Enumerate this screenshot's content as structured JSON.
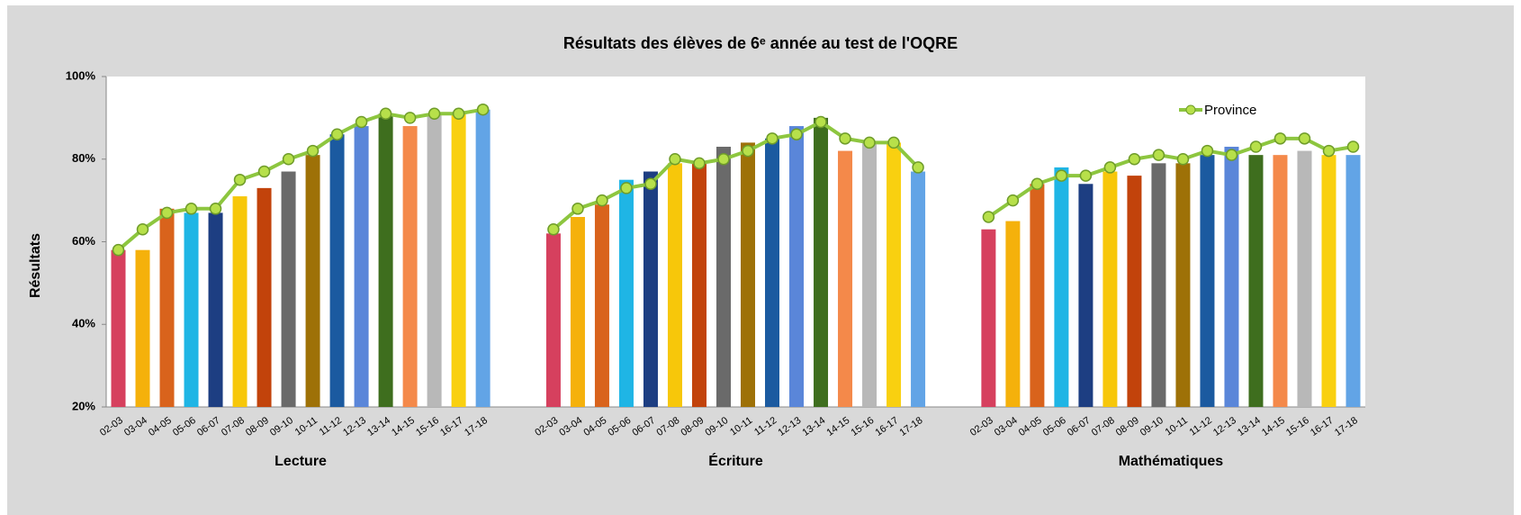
{
  "chart_data": {
    "type": "grouped-bar-line",
    "title": "Résultats des élèves de 6ᵉ année au test de l'OQRE",
    "y_label": "Résultats",
    "categories": [
      "02-03",
      "03-04",
      "04-05",
      "05-06",
      "06-07",
      "07-08",
      "08-09",
      "09-10",
      "10-11",
      "11-12",
      "12-13",
      "13-14",
      "14-15",
      "15-16",
      "16-17",
      "17-18"
    ],
    "bar_colors": [
      "#d6405e",
      "#f5b10b",
      "#d9631c",
      "#1fb5e5",
      "#1d3e82",
      "#f7c70a",
      "#c2430b",
      "#6a6a6a",
      "#9e7107",
      "#1b5aa0",
      "#5a86d9",
      "#3e6e1e",
      "#f4894a",
      "#b8b8b8",
      "#f9d010",
      "#62a4e6"
    ],
    "line": {
      "name": "Province",
      "color": "#8dc63f"
    },
    "groups": [
      {
        "name": "Lecture",
        "values": [
          58,
          58,
          68,
          67,
          67,
          71,
          73,
          77,
          81,
          86,
          88,
          91,
          88,
          91,
          91,
          92
        ],
        "province": [
          58,
          63,
          67,
          68,
          68,
          75,
          77,
          80,
          82,
          86,
          89,
          91,
          90,
          91,
          91,
          92
        ]
      },
      {
        "name": "Écriture",
        "values": [
          62,
          66,
          69,
          75,
          77,
          79,
          79,
          83,
          84,
          85,
          88,
          90,
          82,
          84,
          84,
          77
        ],
        "province": [
          63,
          68,
          70,
          73,
          74,
          80,
          79,
          80,
          82,
          85,
          86,
          89,
          85,
          84,
          84,
          78
        ]
      },
      {
        "name": "Mathématiques",
        "values": [
          63,
          65,
          74,
          78,
          74,
          77,
          76,
          79,
          79,
          81,
          83,
          81,
          81,
          82,
          81,
          81
        ],
        "province": [
          66,
          70,
          74,
          76,
          76,
          78,
          80,
          81,
          80,
          82,
          81,
          83,
          85,
          85,
          82,
          83
        ]
      }
    ],
    "ylim": [
      20,
      100
    ],
    "yticks": [
      {
        "value": 20,
        "label": "20%"
      },
      {
        "value": 40,
        "label": "40%"
      },
      {
        "value": 60,
        "label": "60%"
      },
      {
        "value": 80,
        "label": "80%"
      },
      {
        "value": 100,
        "label": "100%"
      }
    ],
    "legend": "top-right"
  }
}
